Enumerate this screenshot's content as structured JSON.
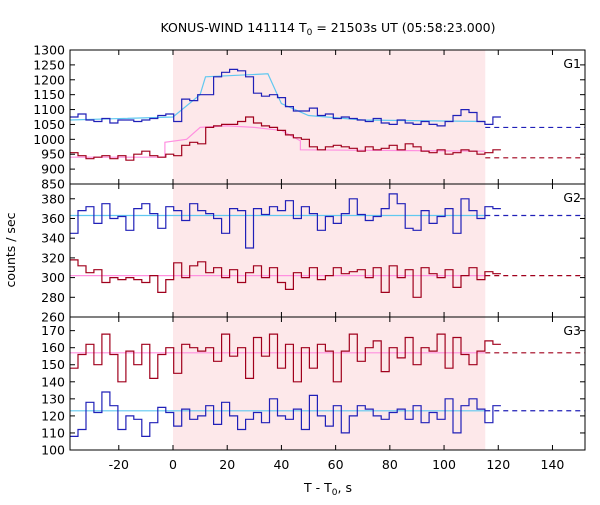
{
  "title": {
    "prefix": "KONUS-WIND 141114 T",
    "sub": "0",
    "suffix": " = 21503s UT (05:58:23.000)"
  },
  "xlabel": {
    "prefix": "T - T",
    "sub": "0",
    "suffix": ", s"
  },
  "ylabel": "counts / sec",
  "colors": {
    "red_step": "#a0001c",
    "blue_step": "#2020b8",
    "red_fit": "#ff90e0",
    "blue_fit": "#60c8f0",
    "red_bg": "#a0001c",
    "blue_bg": "#2020b8",
    "shade": "#fde8ea"
  },
  "chart_data": {
    "type": "line",
    "xlim": [
      -38,
      152
    ],
    "x_ticks": [
      -20,
      0,
      20,
      40,
      60,
      80,
      100,
      120,
      140
    ],
    "shaded_interval": [
      0,
      115.2
    ],
    "step_start": -38,
    "bin_width": 2.944,
    "panels": [
      {
        "label": "G1",
        "ylim": [
          850,
          1300
        ],
        "y_ticks": [
          850,
          900,
          950,
          1000,
          1050,
          1100,
          1150,
          1200,
          1250,
          1300
        ],
        "series": [
          {
            "color": "blue_step",
            "values": [
              1075,
              1085,
              1065,
              1060,
              1070,
              1055,
              1065,
              1065,
              1060,
              1065,
              1070,
              1080,
              1085,
              1060,
              1135,
              1130,
              1150,
              1150,
              1210,
              1225,
              1235,
              1230,
              1210,
              1155,
              1145,
              1150,
              1140,
              1110,
              1095,
              1095,
              1105,
              1080,
              1085,
              1070,
              1075,
              1070,
              1065,
              1060,
              1070,
              1055,
              1050,
              1065,
              1055,
              1050,
              1060,
              1050,
              1045,
              1060,
              1080,
              1100,
              1090,
              1060,
              1050,
              1075
            ]
          },
          {
            "color": "red_step",
            "values": [
              955,
              945,
              935,
              940,
              945,
              935,
              945,
              930,
              950,
              960,
              945,
              940,
              950,
              945,
              980,
              990,
              985,
              1040,
              1045,
              1050,
              1050,
              1060,
              1075,
              1055,
              1045,
              1040,
              1030,
              1015,
              1005,
              1000,
              975,
              965,
              975,
              980,
              975,
              970,
              960,
              975,
              965,
              970,
              980,
              965,
              985,
              975,
              960,
              955,
              965,
              950,
              955,
              965,
              960,
              950,
              955,
              965
            ]
          }
        ],
        "fits": [
          {
            "color": "blue_fit",
            "x": [
              -38,
              0,
              10,
              12,
              35,
              40,
              50,
              70,
              115.2
            ],
            "y": [
              1065,
              1075,
              1150,
              1210,
              1220,
              1120,
              1080,
              1065,
              1060
            ]
          },
          {
            "color": "red_fit",
            "x": [
              -38,
              -3,
              -3,
              5,
              10,
              20,
              30,
              40,
              47,
              47,
              115.2
            ],
            "y": [
              940,
              940,
              990,
              1000,
              1040,
              1045,
              1040,
              1030,
              995,
              965,
              960
            ]
          }
        ],
        "backgrounds": [
          {
            "color": "blue_bg",
            "y": 1040
          },
          {
            "color": "red_bg",
            "y": 938
          }
        ]
      },
      {
        "label": "G2",
        "ylim": [
          260,
          395
        ],
        "y_ticks": [
          260,
          280,
          300,
          320,
          340,
          360,
          380
        ],
        "series": [
          {
            "color": "blue_step",
            "values": [
              345,
              368,
              372,
              355,
              375,
              360,
              362,
              348,
              370,
              375,
              365,
              350,
              372,
              368,
              358,
              375,
              368,
              365,
              360,
              345,
              370,
              368,
              330,
              370,
              364,
              372,
              368,
              378,
              360,
              372,
              365,
              348,
              362,
              355,
              365,
              380,
              364,
              358,
              362,
              370,
              385,
              375,
              350,
              348,
              368,
              355,
              362,
              370,
              345,
              380,
              368,
              360,
              372,
              370
            ]
          },
          {
            "color": "red_step",
            "values": [
              318,
              312,
              305,
              308,
              295,
              300,
              298,
              300,
              298,
              295,
              302,
              285,
              298,
              315,
              300,
              312,
              316,
              305,
              310,
              300,
              308,
              295,
              305,
              312,
              300,
              310,
              295,
              288,
              305,
              300,
              310,
              298,
              302,
              310,
              304,
              306,
              308,
              300,
              310,
              285,
              312,
              300,
              308,
              280,
              310,
              304,
              300,
              308,
              290,
              302,
              310,
              298,
              306,
              304
            ]
          }
        ],
        "fits": [
          {
            "color": "blue_fit",
            "x": [
              -38,
              115.2
            ],
            "y": [
              363,
              363
            ]
          },
          {
            "color": "red_fit",
            "x": [
              -38,
              115.2
            ],
            "y": [
              302,
              302
            ]
          }
        ],
        "backgrounds": [
          {
            "color": "blue_bg",
            "y": 363
          },
          {
            "color": "red_bg",
            "y": 302
          }
        ]
      },
      {
        "label": "G3",
        "ylim": [
          100,
          178
        ],
        "y_ticks": [
          100,
          110,
          120,
          130,
          140,
          150,
          160,
          170
        ],
        "series": [
          {
            "color": "blue_step",
            "values": [
              108,
              112,
              128,
              122,
              134,
              126,
              112,
              120,
              118,
              108,
              116,
              125,
              122,
              114,
              124,
              118,
              120,
              126,
              115,
              128,
              120,
              112,
              118,
              122,
              116,
              130,
              120,
              118,
              124,
              112,
              132,
              120,
              114,
              126,
              110,
              120,
              126,
              124,
              120,
              118,
              122,
              124,
              118,
              126,
              116,
              122,
              118,
              130,
              110,
              126,
              130,
              124,
              116,
              126
            ]
          },
          {
            "color": "red_step",
            "values": [
              148,
              156,
              162,
              150,
              168,
              156,
              140,
              158,
              150,
              162,
              142,
              156,
              160,
              145,
              162,
              160,
              158,
              160,
              152,
              168,
              155,
              160,
              142,
              166,
              155,
              168,
              148,
              162,
              140,
              160,
              148,
              162,
              158,
              140,
              158,
              168,
              152,
              160,
              164,
              146,
              160,
              154,
              166,
              150,
              160,
              158,
              168,
              148,
              166,
              156,
              150,
              158,
              164,
              162
            ]
          }
        ],
        "fits": [
          {
            "color": "blue_fit",
            "x": [
              -38,
              115.2
            ],
            "y": [
              123,
              123
            ]
          },
          {
            "color": "red_fit",
            "x": [
              -38,
              115.2
            ],
            "y": [
              157,
              157
            ]
          }
        ],
        "backgrounds": [
          {
            "color": "blue_bg",
            "y": 123
          },
          {
            "color": "red_bg",
            "y": 157
          }
        ]
      }
    ]
  }
}
